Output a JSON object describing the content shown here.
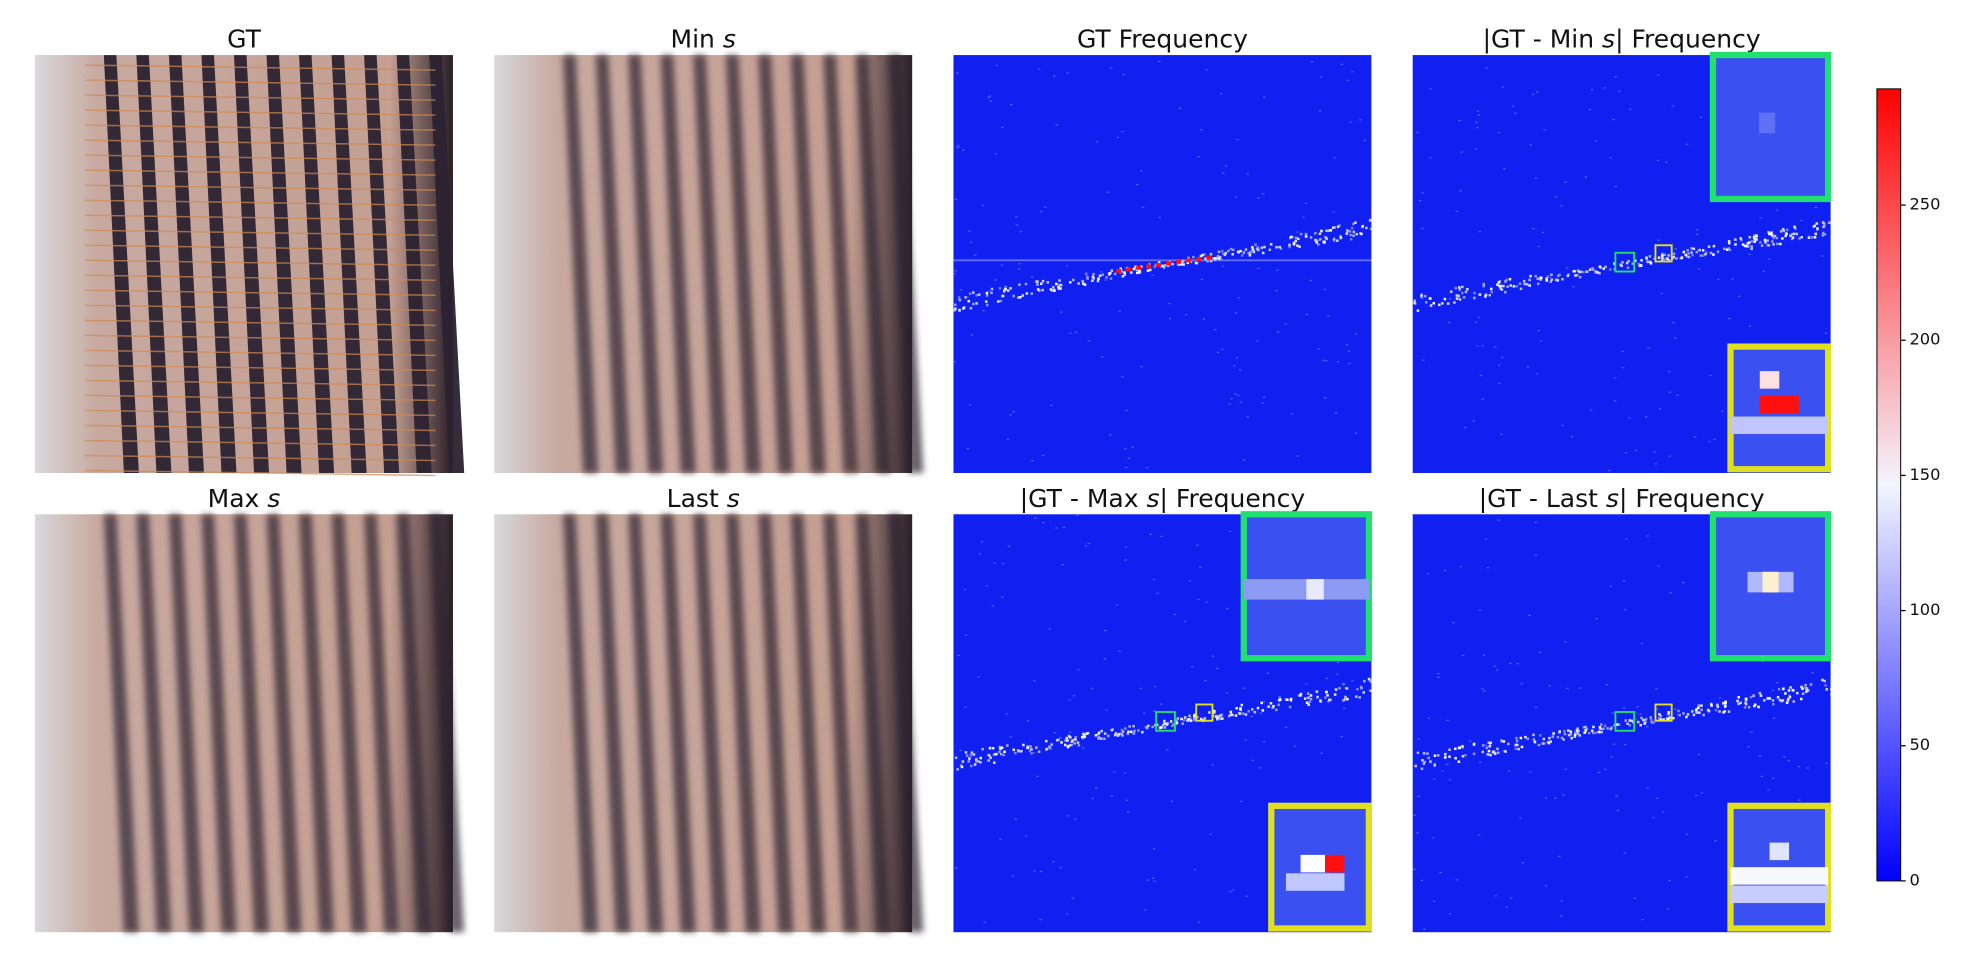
{
  "panels": [
    {
      "title": [
        "GT"
      ]
    },
    {
      "title": [
        "Min ",
        "s"
      ]
    },
    {
      "title": [
        "GT Frequency"
      ]
    },
    {
      "title": [
        "|GT - Min ",
        "s",
        "| Frequency"
      ]
    },
    {
      "title": [
        "Max ",
        "s"
      ]
    },
    {
      "title": [
        "Last ",
        "s"
      ]
    },
    {
      "title": [
        "|GT - Max ",
        "s",
        "| Frequency"
      ]
    },
    {
      "title": [
        "|GT - Last ",
        "s",
        "| Frequency"
      ]
    }
  ],
  "colorbar": {
    "lim": [
      0,
      293
    ],
    "ticks": [
      0,
      50,
      100,
      150,
      200,
      250
    ]
  }
}
